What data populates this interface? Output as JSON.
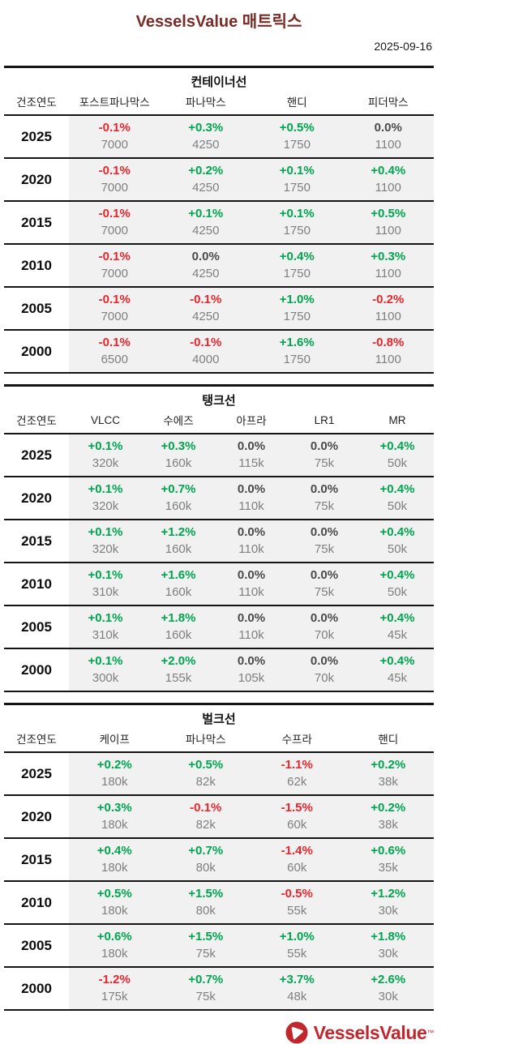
{
  "page": {
    "title": "VesselsValue 매트릭스",
    "date": "2025-09-16"
  },
  "colors": {
    "positive": "#00A550",
    "negative": "#E8262C",
    "neutral": "#4A4A4A",
    "title_maroon": "#7A2B26",
    "logo_red": "#C1272D",
    "cell_bg": "#F1F1F1"
  },
  "year_col_header": "건조연도",
  "tables": [
    {
      "section": "컨테이너선",
      "columns": [
        "포스트파나막스",
        "파나막스",
        "핸디",
        "피더막스"
      ],
      "rows": [
        {
          "year": "2025",
          "cells": [
            {
              "pct": "-0.1%",
              "size": "7000"
            },
            {
              "pct": "+0.3%",
              "size": "4250"
            },
            {
              "pct": "+0.5%",
              "size": "1750"
            },
            {
              "pct": "0.0%",
              "size": "1100"
            }
          ]
        },
        {
          "year": "2020",
          "cells": [
            {
              "pct": "-0.1%",
              "size": "7000"
            },
            {
              "pct": "+0.2%",
              "size": "4250"
            },
            {
              "pct": "+0.1%",
              "size": "1750"
            },
            {
              "pct": "+0.4%",
              "size": "1100"
            }
          ]
        },
        {
          "year": "2015",
          "cells": [
            {
              "pct": "-0.1%",
              "size": "7000"
            },
            {
              "pct": "+0.1%",
              "size": "4250"
            },
            {
              "pct": "+0.1%",
              "size": "1750"
            },
            {
              "pct": "+0.5%",
              "size": "1100"
            }
          ]
        },
        {
          "year": "2010",
          "cells": [
            {
              "pct": "-0.1%",
              "size": "7000"
            },
            {
              "pct": "0.0%",
              "size": "4250"
            },
            {
              "pct": "+0.4%",
              "size": "1750"
            },
            {
              "pct": "+0.3%",
              "size": "1100"
            }
          ]
        },
        {
          "year": "2005",
          "cells": [
            {
              "pct": "-0.1%",
              "size": "7000"
            },
            {
              "pct": "-0.1%",
              "size": "4250"
            },
            {
              "pct": "+1.0%",
              "size": "1750"
            },
            {
              "pct": "-0.2%",
              "size": "1100"
            }
          ]
        },
        {
          "year": "2000",
          "cells": [
            {
              "pct": "-0.1%",
              "size": "6500"
            },
            {
              "pct": "-0.1%",
              "size": "4000"
            },
            {
              "pct": "+1.6%",
              "size": "1750"
            },
            {
              "pct": "-0.8%",
              "size": "1100"
            }
          ]
        }
      ]
    },
    {
      "section": "탱크선",
      "columns": [
        "VLCC",
        "수에즈",
        "아프라",
        "LR1",
        "MR"
      ],
      "rows": [
        {
          "year": "2025",
          "cells": [
            {
              "pct": "+0.1%",
              "size": "320k"
            },
            {
              "pct": "+0.3%",
              "size": "160k"
            },
            {
              "pct": "0.0%",
              "size": "115k"
            },
            {
              "pct": "0.0%",
              "size": "75k"
            },
            {
              "pct": "+0.4%",
              "size": "50k"
            }
          ]
        },
        {
          "year": "2020",
          "cells": [
            {
              "pct": "+0.1%",
              "size": "320k"
            },
            {
              "pct": "+0.7%",
              "size": "160k"
            },
            {
              "pct": "0.0%",
              "size": "110k"
            },
            {
              "pct": "0.0%",
              "size": "75k"
            },
            {
              "pct": "+0.4%",
              "size": "50k"
            }
          ]
        },
        {
          "year": "2015",
          "cells": [
            {
              "pct": "+0.1%",
              "size": "320k"
            },
            {
              "pct": "+1.2%",
              "size": "160k"
            },
            {
              "pct": "0.0%",
              "size": "110k"
            },
            {
              "pct": "0.0%",
              "size": "75k"
            },
            {
              "pct": "+0.4%",
              "size": "50k"
            }
          ]
        },
        {
          "year": "2010",
          "cells": [
            {
              "pct": "+0.1%",
              "size": "310k"
            },
            {
              "pct": "+1.6%",
              "size": "160k"
            },
            {
              "pct": "0.0%",
              "size": "110k"
            },
            {
              "pct": "0.0%",
              "size": "75k"
            },
            {
              "pct": "+0.4%",
              "size": "50k"
            }
          ]
        },
        {
          "year": "2005",
          "cells": [
            {
              "pct": "+0.1%",
              "size": "310k"
            },
            {
              "pct": "+1.8%",
              "size": "160k"
            },
            {
              "pct": "0.0%",
              "size": "110k"
            },
            {
              "pct": "0.0%",
              "size": "70k"
            },
            {
              "pct": "+0.4%",
              "size": "45k"
            }
          ]
        },
        {
          "year": "2000",
          "cells": [
            {
              "pct": "+0.1%",
              "size": "300k"
            },
            {
              "pct": "+2.0%",
              "size": "155k"
            },
            {
              "pct": "0.0%",
              "size": "105k"
            },
            {
              "pct": "0.0%",
              "size": "70k"
            },
            {
              "pct": "+0.4%",
              "size": "45k"
            }
          ]
        }
      ]
    },
    {
      "section": "벌크선",
      "columns": [
        "케이프",
        "파나막스",
        "수프라",
        "핸디"
      ],
      "rows": [
        {
          "year": "2025",
          "cells": [
            {
              "pct": "+0.2%",
              "size": "180k"
            },
            {
              "pct": "+0.5%",
              "size": "82k"
            },
            {
              "pct": "-1.1%",
              "size": "62k"
            },
            {
              "pct": "+0.2%",
              "size": "38k"
            }
          ]
        },
        {
          "year": "2020",
          "cells": [
            {
              "pct": "+0.3%",
              "size": "180k"
            },
            {
              "pct": "-0.1%",
              "size": "82k"
            },
            {
              "pct": "-1.5%",
              "size": "60k"
            },
            {
              "pct": "+0.2%",
              "size": "38k"
            }
          ]
        },
        {
          "year": "2015",
          "cells": [
            {
              "pct": "+0.4%",
              "size": "180k"
            },
            {
              "pct": "+0.7%",
              "size": "80k"
            },
            {
              "pct": "-1.4%",
              "size": "60k"
            },
            {
              "pct": "+0.6%",
              "size": "35k"
            }
          ]
        },
        {
          "year": "2010",
          "cells": [
            {
              "pct": "+0.5%",
              "size": "180k"
            },
            {
              "pct": "+1.5%",
              "size": "80k"
            },
            {
              "pct": "-0.5%",
              "size": "55k"
            },
            {
              "pct": "+1.2%",
              "size": "30k"
            }
          ]
        },
        {
          "year": "2005",
          "cells": [
            {
              "pct": "+0.6%",
              "size": "180k"
            },
            {
              "pct": "+1.5%",
              "size": "75k"
            },
            {
              "pct": "+1.0%",
              "size": "55k"
            },
            {
              "pct": "+1.8%",
              "size": "30k"
            }
          ]
        },
        {
          "year": "2000",
          "cells": [
            {
              "pct": "-1.2%",
              "size": "175k"
            },
            {
              "pct": "+0.7%",
              "size": "75k"
            },
            {
              "pct": "+3.7%",
              "size": "48k"
            },
            {
              "pct": "+2.6%",
              "size": "30k"
            }
          ]
        }
      ]
    }
  ],
  "logo": {
    "text": "VesselsValue",
    "tm": "™"
  }
}
